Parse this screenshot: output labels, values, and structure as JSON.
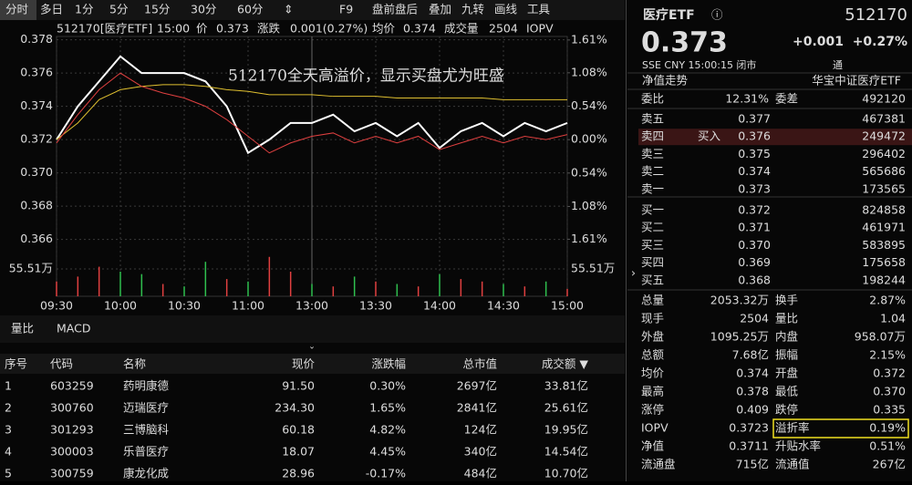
{
  "toolbar": {
    "tabs": [
      "分时",
      "多日",
      "1分",
      "5分",
      "15分",
      "30分",
      "60分",
      "⇕"
    ],
    "right": [
      "F9",
      "盘前盘后",
      "叠加",
      "九转",
      "画线",
      "工具"
    ]
  },
  "quote_header": {
    "code_name": "512170[医疗ETF]",
    "time": "15:00",
    "price_label": "价",
    "price": "0.373",
    "change_label": "涨跌",
    "change": "0.001(0.27%)",
    "avg_label": "均价",
    "avg": "0.374",
    "volume_label": "成交量",
    "volume": "2504",
    "iopv_label": "IOPV"
  },
  "chart_data": {
    "type": "line",
    "annotation": "512170全天高溢价，显示买盘尤为旺盛",
    "x": [
      0,
      10,
      20,
      30,
      40,
      50,
      60,
      70,
      80,
      90,
      100,
      110,
      120,
      130,
      140,
      150,
      160,
      170,
      180,
      190,
      200,
      210,
      220,
      230,
      240
    ],
    "xlim": [
      0,
      240
    ],
    "xticks": [
      {
        "value": 0,
        "label": "09:30"
      },
      {
        "value": 30,
        "label": "10:00"
      },
      {
        "value": 60,
        "label": "10:30"
      },
      {
        "value": 90,
        "label": "11:00"
      },
      {
        "value": 120,
        "label": "13:00"
      },
      {
        "value": 150,
        "label": "13:30"
      },
      {
        "value": 180,
        "label": "14:00"
      },
      {
        "value": 210,
        "label": "14:30"
      },
      {
        "value": 240,
        "label": "15:00"
      }
    ],
    "ylim": [
      0.3648,
      0.3782
    ],
    "yticks": [
      0.378,
      0.376,
      0.374,
      0.372,
      {
        "value": 0.37,
        "label": "0.370"
      },
      0.368,
      0.366
    ],
    "ytick_colors": [
      "#e04040",
      "#e04040",
      "#e04040",
      "#dddddd",
      "#2fbf4f",
      "#2fbf4f",
      "#2fbf4f"
    ],
    "y2lim": [
      -1.935,
      1.667
    ],
    "y2ticks": [
      {
        "value": 1.61,
        "label": "1.61%"
      },
      {
        "value": 1.08,
        "label": "1.08%"
      },
      {
        "value": 0.54,
        "label": "0.54%"
      },
      {
        "value": 0,
        "label": "0.00%"
      },
      {
        "value": -0.54,
        "label": "0.54%"
      },
      {
        "value": -1.08,
        "label": "1.08%"
      },
      {
        "value": -1.61,
        "label": "1.61%"
      }
    ],
    "y2tick_colors": [
      "#e04040",
      "#e04040",
      "#e04040",
      "#dddddd",
      "#2fbf4f",
      "#2fbf4f",
      "#2fbf4f"
    ],
    "grid": true,
    "series": [
      {
        "color": "#ffffff",
        "values": [
          0.372,
          0.374,
          0.3755,
          0.377,
          0.376,
          0.376,
          0.376,
          0.3755,
          0.374,
          0.3712,
          0.372,
          0.373,
          0.373,
          0.3735,
          0.3725,
          0.373,
          0.3722,
          0.373,
          0.3715,
          0.3725,
          0.373,
          0.3722,
          0.373,
          0.3725,
          0.373
        ]
      },
      {
        "color": "#e0c030",
        "values": [
          0.372,
          0.373,
          0.3744,
          0.375,
          0.3752,
          0.3753,
          0.3753,
          0.3752,
          0.375,
          0.3749,
          0.3747,
          0.3747,
          0.3747,
          0.3746,
          0.3746,
          0.3746,
          0.3745,
          0.3745,
          0.3745,
          0.3745,
          0.3745,
          0.3744,
          0.3744,
          0.3744,
          0.3744
        ]
      },
      {
        "color": "#e04040",
        "values": [
          0.3718,
          0.3735,
          0.375,
          0.376,
          0.3752,
          0.3748,
          0.3745,
          0.374,
          0.3732,
          0.3722,
          0.3712,
          0.3718,
          0.3722,
          0.3724,
          0.3718,
          0.3722,
          0.3718,
          0.3722,
          0.3714,
          0.3718,
          0.3722,
          0.3718,
          0.3722,
          0.372,
          0.3723
        ]
      }
    ],
    "volume": {
      "values": [
        30,
        40,
        60,
        50,
        45,
        25,
        20,
        70,
        35,
        30,
        80,
        50,
        25,
        20,
        40,
        30,
        25,
        20,
        45,
        35,
        30,
        25,
        20,
        30,
        15
      ],
      "colors": [
        "#e04040",
        "#e04040",
        "#e04040",
        "#2fbf4f",
        "#2fbf4f",
        "#e04040",
        "#2fbf4f",
        "#2fbf4f",
        "#e04040",
        "#2fbf4f",
        "#e04040",
        "#e04040",
        "#2fbf4f",
        "#e04040",
        "#2fbf4f",
        "#e04040",
        "#2fbf4f",
        "#e04040",
        "#2fbf4f",
        "#e04040",
        "#e04040",
        "#2fbf4f",
        "#e04040",
        "#2fbf4f",
        "#e04040"
      ],
      "ylim": [
        0,
        111.02
      ],
      "yticks": [
        {
          "value": 55.51,
          "label": "55.51万"
        }
      ]
    }
  },
  "bottom_tabs": [
    "量比",
    "MACD"
  ],
  "table": {
    "headers": [
      "序号",
      "代码",
      "名称",
      "现价",
      "涨跌幅",
      "总市值",
      "成交额 ▼"
    ],
    "rows": [
      [
        "1",
        "603259",
        "药明康德",
        "91.50",
        "0.30%",
        "2697亿",
        "33.81亿"
      ],
      [
        "2",
        "300760",
        "迈瑞医疗",
        "234.30",
        "1.65%",
        "2841亿",
        "25.61亿"
      ],
      [
        "3",
        "301293",
        "三博脑科",
        "60.18",
        "4.82%",
        "124亿",
        "19.95亿"
      ],
      [
        "4",
        "300003",
        "乐普医疗",
        "18.07",
        "4.45%",
        "340亿",
        "14.54亿"
      ],
      [
        "5",
        "300759",
        "康龙化成",
        "28.96",
        "-0.17%",
        "484亿",
        "10.70亿"
      ]
    ],
    "row_colors": [
      "#e04040",
      "#e04040",
      "#e04040",
      "#e04040",
      "#2fbf4f"
    ]
  },
  "panel": {
    "name": "医疗ETF",
    "code": "512170",
    "price": "0.373",
    "change": "+0.001",
    "change_pct": "+0.27%",
    "info": "SSE  CNY  15:00:15  闭市",
    "icon_text": "通",
    "nav_trend": "净值走势",
    "fund_name": "华宝中证医疗ETF",
    "ratio": {
      "label": "委比",
      "value": "12.31%",
      "label2": "委差",
      "value2": "492120"
    },
    "book": [
      {
        "label": "卖五",
        "price": "0.377",
        "volume": "467381",
        "color": "#e04040"
      },
      {
        "label": "卖四",
        "tag": "买入",
        "price": "0.376",
        "volume": "249472",
        "color": "#e04040"
      },
      {
        "label": "卖三",
        "price": "0.375",
        "volume": "296402",
        "color": "#e04040"
      },
      {
        "label": "卖二",
        "price": "0.374",
        "volume": "565686",
        "color": "#e04040"
      },
      {
        "label": "卖一",
        "price": "0.373",
        "volume": "173565",
        "color": "#e04040"
      },
      {
        "label": "买一",
        "price": "0.372",
        "volume": "824858",
        "color": "#dddddd"
      },
      {
        "label": "买二",
        "price": "0.371",
        "volume": "461971",
        "color": "#2fbf4f"
      },
      {
        "label": "买三",
        "price": "0.370",
        "volume": "583895",
        "color": "#2fbf4f"
      },
      {
        "label": "买四",
        "price": "0.369",
        "volume": "175658",
        "color": "#2fbf4f"
      },
      {
        "label": "买五",
        "price": "0.368",
        "volume": "198244",
        "color": "#2fbf4f"
      }
    ],
    "stats": [
      {
        "label": "总量",
        "value": "2053.32万",
        "label2": "换手",
        "value2": "2.87%",
        "color": "#dddddd",
        "color2": "#dddddd"
      },
      {
        "label": "现手",
        "value": "2504",
        "label2": "量比",
        "value2": "1.04",
        "color": "#dddddd",
        "color2": "#dddddd"
      },
      {
        "label": "外盘",
        "value": "1095.25万",
        "label2": "内盘",
        "value2": "958.07万",
        "color": "#e04040",
        "color2": "#2fbf4f"
      },
      {
        "label": "总额",
        "value": "7.68亿",
        "label2": "振幅",
        "value2": "2.15%",
        "color": "#dddddd",
        "color2": "#dddddd"
      },
      {
        "label": "均价",
        "value": "0.374",
        "label2": "开盘",
        "value2": "0.372",
        "color": "#e04040",
        "color2": "#dddddd"
      },
      {
        "label": "最高",
        "value": "0.378",
        "label2": "最低",
        "value2": "0.370",
        "color": "#e04040",
        "color2": "#2fbf4f"
      },
      {
        "label": "涨停",
        "value": "0.409",
        "label2": "跌停",
        "value2": "0.335",
        "color": "#e04040",
        "color2": "#2fbf4f"
      },
      {
        "label": "IOPV",
        "value": "0.3723",
        "label2": "溢折率",
        "value2": "0.19%",
        "color": "#dddddd",
        "color2": "#e04040",
        "highlight": true
      },
      {
        "label": "净值",
        "value": "0.3711",
        "label2": "升贴水率",
        "value2": "0.51%",
        "color": "#e04040",
        "color2": "#e04040"
      },
      {
        "label": "流通盘",
        "value": "715亿",
        "label2": "流通值",
        "value2": "267亿",
        "color": "#dddddd",
        "color2": "#dddddd"
      }
    ]
  }
}
